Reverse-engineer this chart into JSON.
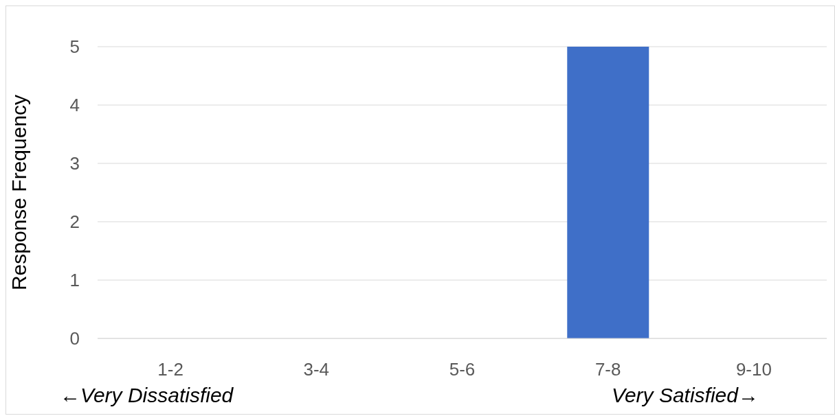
{
  "chart_data": {
    "type": "bar",
    "ylabel": "Response Frequency",
    "categories": [
      "1-2",
      "3-4",
      "5-6",
      "7-8",
      "9-10"
    ],
    "values": [
      0,
      0,
      0,
      5,
      0
    ],
    "color": "#3f6fc8",
    "ylim": [
      0,
      5
    ],
    "yticks": [
      0,
      1,
      2,
      3,
      4,
      5
    ],
    "grid": "y",
    "annotations": [
      "←Very Dissatisfied",
      "Very Satisfied→"
    ]
  }
}
